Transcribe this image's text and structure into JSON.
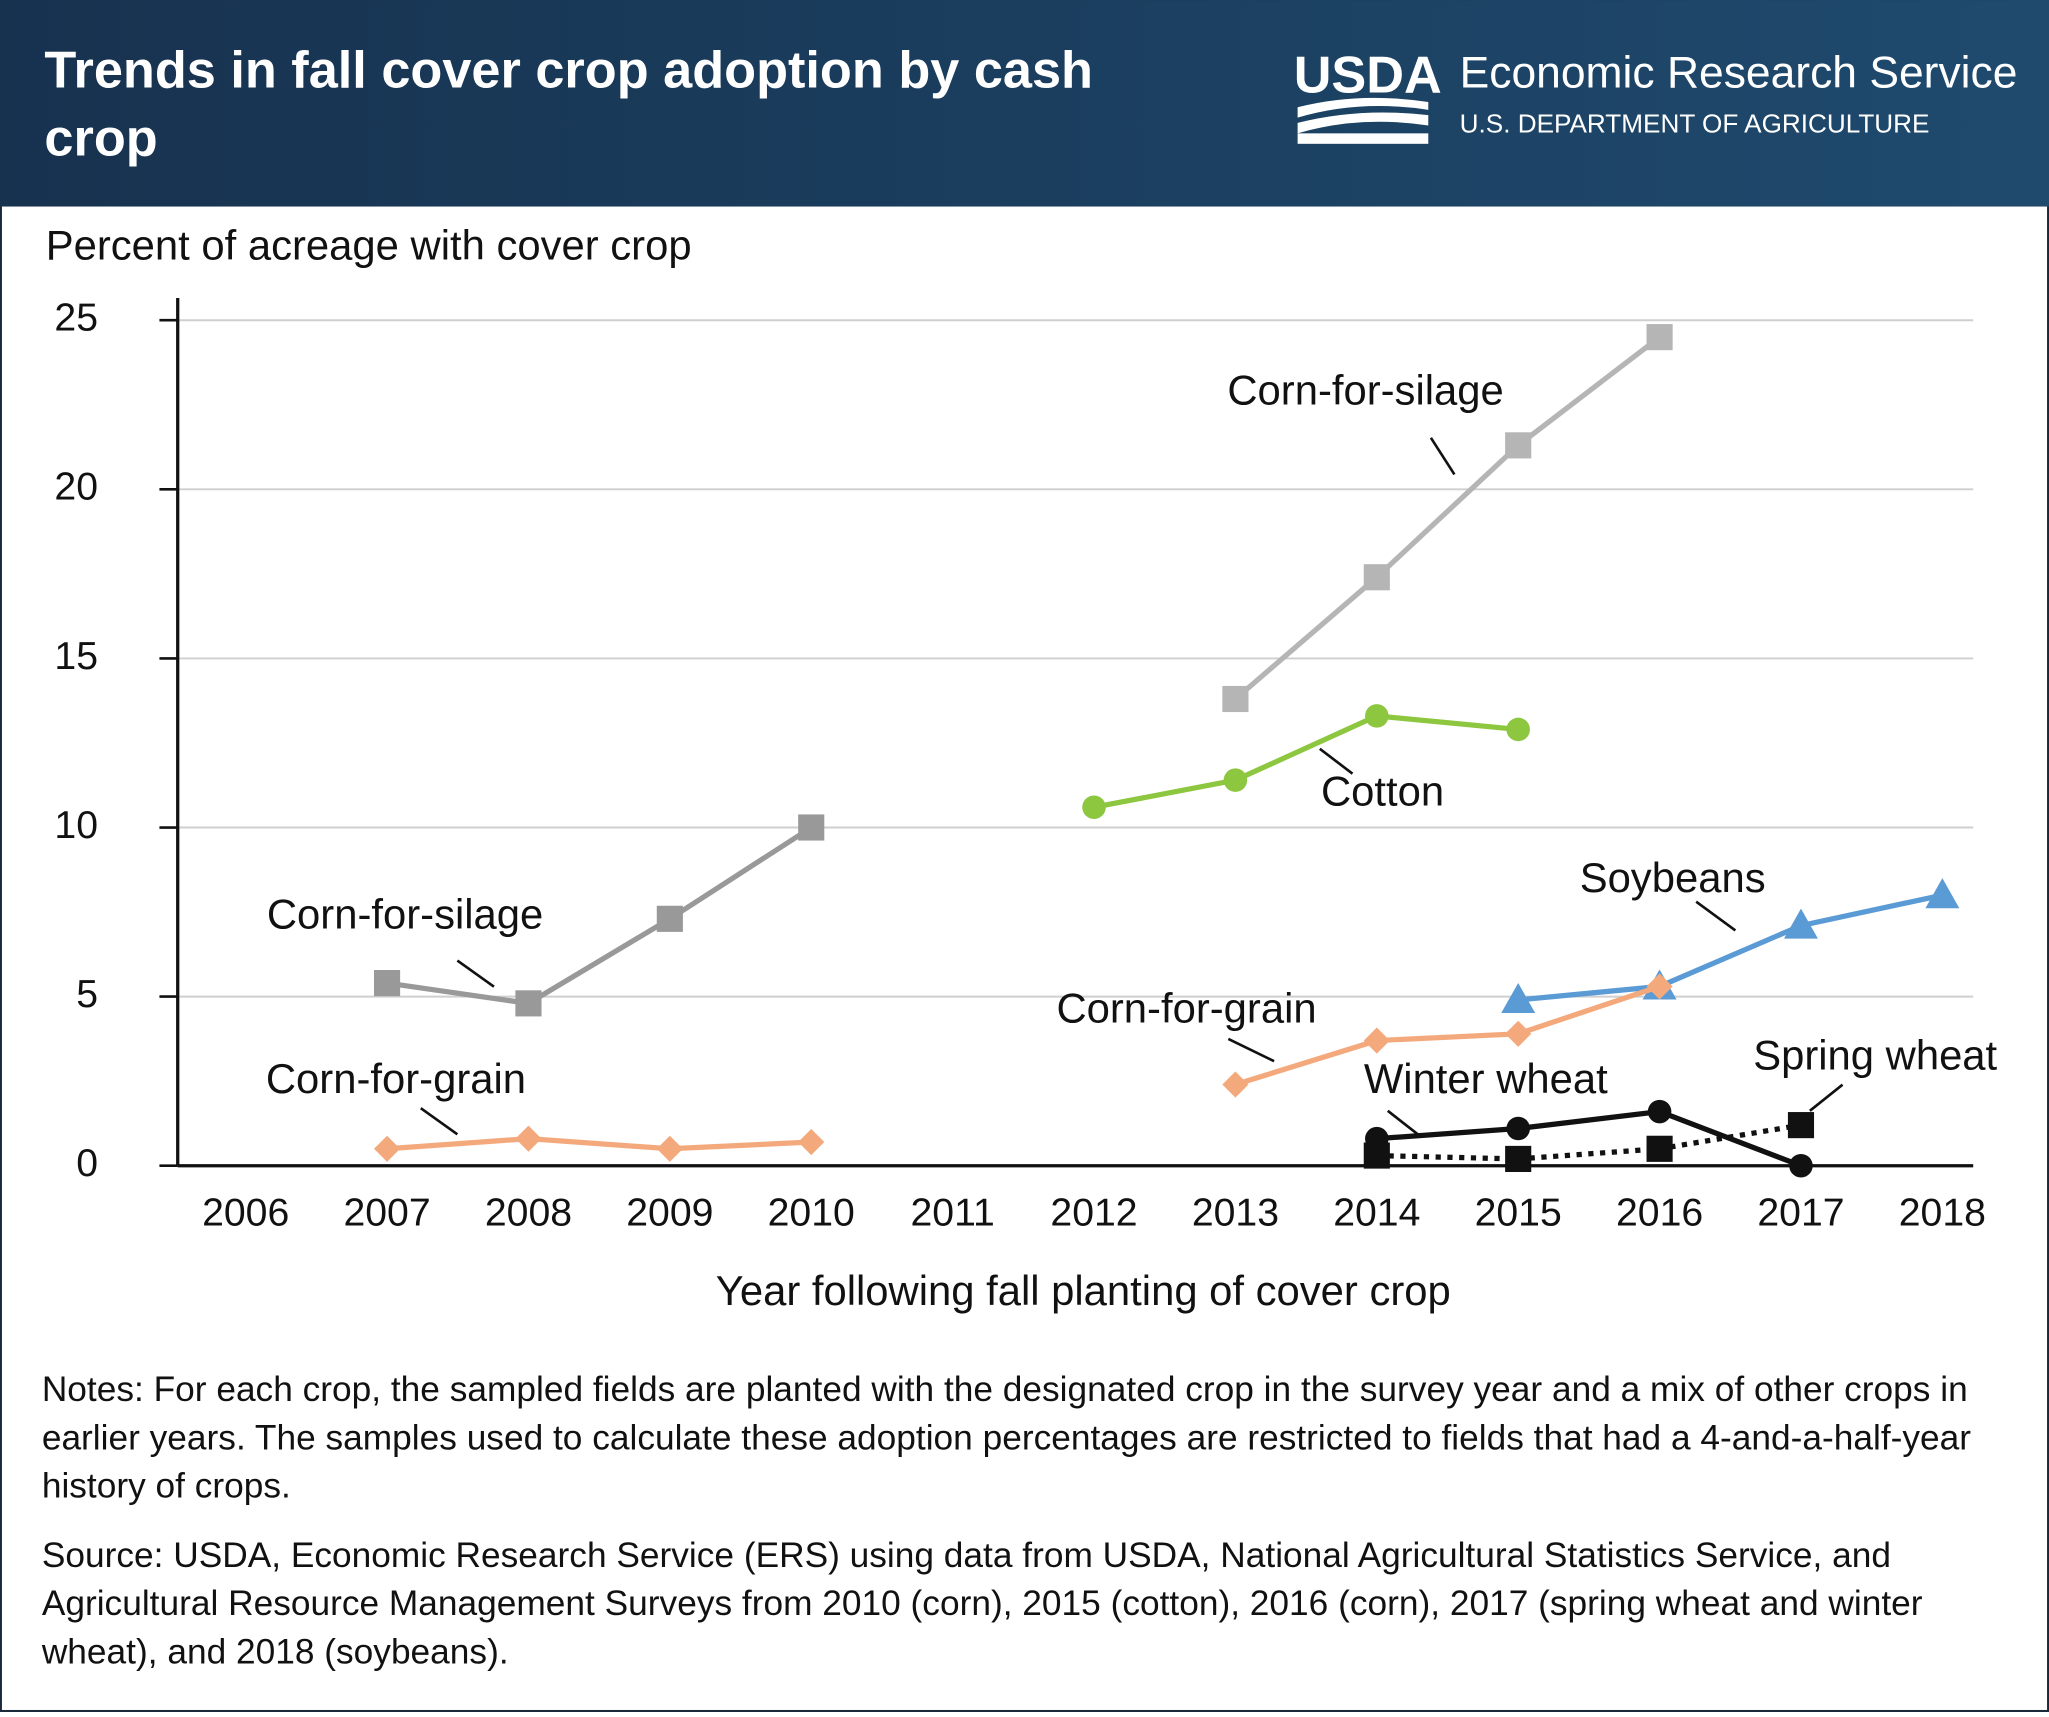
{
  "header": {
    "title": "Trends in fall cover crop adoption by cash crop",
    "agency": "Economic Research Service",
    "department": "U.S. DEPARTMENT OF AGRICULTURE",
    "logo": "USDA"
  },
  "chart_data": {
    "type": "line",
    "ylabel": "Percent of acreage with cover crop",
    "xlabel": "Year following fall planting of cover crop",
    "categories": [
      "2006",
      "2007",
      "2008",
      "2009",
      "2010",
      "2011",
      "2012",
      "2013",
      "2014",
      "2015",
      "2016",
      "2017",
      "2018"
    ],
    "ylim": [
      0,
      25
    ],
    "yticks": [
      0,
      5,
      10,
      15,
      20,
      25
    ],
    "grid": true,
    "series": [
      {
        "name": "Corn-for-silage",
        "color": "#999999",
        "marker": "square",
        "values": [
          null,
          5.4,
          4.8,
          7.3,
          10.0,
          null,
          null,
          null,
          null,
          null,
          null,
          null,
          null
        ]
      },
      {
        "name": "Corn-for-grain",
        "color": "#f4a97c",
        "marker": "diamond",
        "values": [
          null,
          0.5,
          0.8,
          0.5,
          0.7,
          null,
          null,
          null,
          null,
          null,
          null,
          null,
          null
        ]
      },
      {
        "name": "Corn-for-silage",
        "color": "#b5b5b5",
        "marker": "square",
        "values": [
          null,
          null,
          null,
          null,
          null,
          null,
          null,
          13.8,
          17.4,
          21.3,
          24.5,
          null,
          null
        ]
      },
      {
        "name": "Cotton",
        "color": "#8dc63f",
        "marker": "circle",
        "values": [
          null,
          null,
          null,
          null,
          null,
          null,
          10.6,
          11.4,
          13.3,
          12.9,
          null,
          null,
          null
        ]
      },
      {
        "name": "Soybeans",
        "color": "#5b9bd5",
        "marker": "triangle",
        "values": [
          null,
          null,
          null,
          null,
          null,
          null,
          null,
          null,
          null,
          4.9,
          5.3,
          7.1,
          8.0
        ]
      },
      {
        "name": "Corn-for-grain",
        "color": "#f4a97c",
        "marker": "diamond",
        "values": [
          null,
          null,
          null,
          null,
          null,
          null,
          null,
          2.4,
          3.7,
          3.9,
          5.3,
          null,
          null
        ]
      },
      {
        "name": "Winter wheat",
        "color": "#111111",
        "marker": "circle",
        "values": [
          null,
          null,
          null,
          null,
          null,
          null,
          null,
          null,
          0.8,
          1.1,
          1.6,
          0,
          null
        ]
      },
      {
        "name": "Spring wheat",
        "color": "#111111",
        "marker": "square",
        "dashed": true,
        "values": [
          null,
          null,
          null,
          null,
          null,
          null,
          null,
          null,
          0.3,
          0.2,
          0.5,
          1.2,
          null
        ]
      }
    ]
  },
  "notes": "Notes: For each crop, the sampled fields are planted with the designated crop in the survey year and a mix of other crops in earlier years. The samples used to calculate these adoption percentages are restricted to fields that had a 4-and-a-half-year history of crops.",
  "source": "Source: USDA, Economic Research Service (ERS) using data from USDA, National Agricultural Statistics Service, and Agricultural Resource Management Surveys from 2010 (corn), 2015 (cotton), 2016 (corn), 2017 (spring wheat and winter wheat), and 2018 (soybeans)."
}
